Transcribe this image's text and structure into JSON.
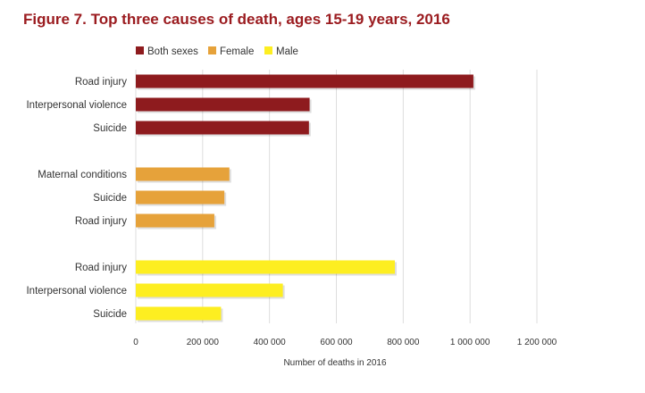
{
  "title": "Figure 7. Top three causes of death, ages 15-19 years, 2016",
  "chart_data": {
    "type": "bar",
    "orientation": "horizontal",
    "xlabel": "Number of deaths in 2016",
    "xlim": [
      0,
      1200000
    ],
    "x_ticks": [
      0,
      200000,
      400000,
      600000,
      800000,
      1000000,
      1200000
    ],
    "x_tick_labels": [
      "0",
      "200 000",
      "400 000",
      "600 000",
      "800 000",
      "1 000 000",
      "1 200 000"
    ],
    "grid": "vertical",
    "legend_position": "top-left",
    "series": [
      {
        "name": "Both sexes",
        "color": "#8e1b1e",
        "categories": [
          "Road injury",
          "Interpersonal violence",
          "Suicide"
        ],
        "values": [
          1010000,
          520000,
          518000
        ]
      },
      {
        "name": "Female",
        "color": "#e6a23a",
        "categories": [
          "Maternal conditions",
          "Suicide",
          "Road injury"
        ],
        "values": [
          280000,
          265000,
          235000
        ]
      },
      {
        "name": "Male",
        "color": "#fdee21",
        "categories": [
          "Road injury",
          "Interpersonal violence",
          "Suicide"
        ],
        "values": [
          775000,
          440000,
          255000
        ]
      }
    ]
  }
}
